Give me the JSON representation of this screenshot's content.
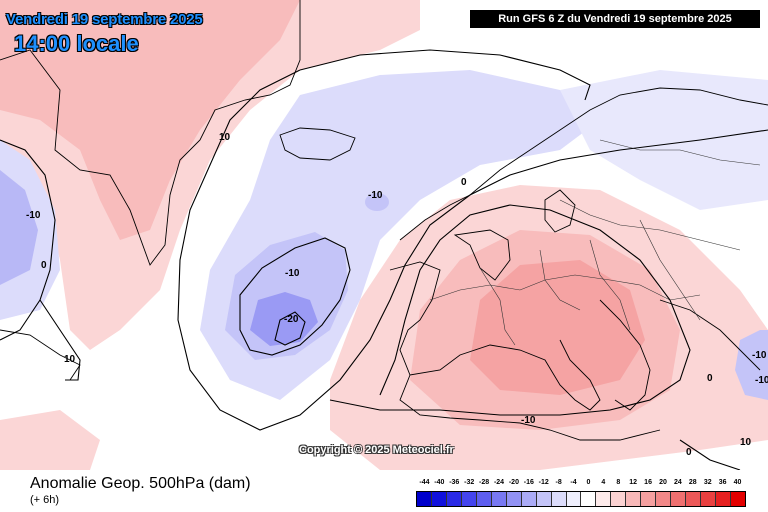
{
  "header": {
    "date": "Vendredi 19 septembre 2025",
    "time": "14:00 locale",
    "run": "Run GFS 6 Z du Vendredi 19 septembre 2025"
  },
  "copyright": "Copyright © 2025 Meteociel.fr",
  "footer": {
    "title": "Anomalie Geop. 500hPa (dam)",
    "subtitle": "(+ 6h)"
  },
  "legend": {
    "labels": [
      "-44",
      "-40",
      "-36",
      "-32",
      "-28",
      "-24",
      "-20",
      "-16",
      "-12",
      "-8",
      "-4",
      "0",
      "4",
      "8",
      "12",
      "16",
      "20",
      "24",
      "28",
      "32",
      "36",
      "40"
    ],
    "colors": [
      "#0000cc",
      "#1111dd",
      "#2a2ae6",
      "#4444ee",
      "#5e5ef0",
      "#7878f2",
      "#9292f4",
      "#ababf6",
      "#c4c4f8",
      "#dcdcfb",
      "#efeffd",
      "#ffffff",
      "#fdeaea",
      "#fbd2d2",
      "#f8b8b8",
      "#f5a0a0",
      "#f28888",
      "#ef7070",
      "#ec5858",
      "#e94040",
      "#e62020",
      "#e30000"
    ]
  },
  "contour_labels": [
    "10",
    "-10",
    "0",
    "-10",
    "-10",
    "-20",
    "0",
    "10",
    "-10",
    "-10",
    "0",
    "-10",
    "0",
    "10"
  ]
}
